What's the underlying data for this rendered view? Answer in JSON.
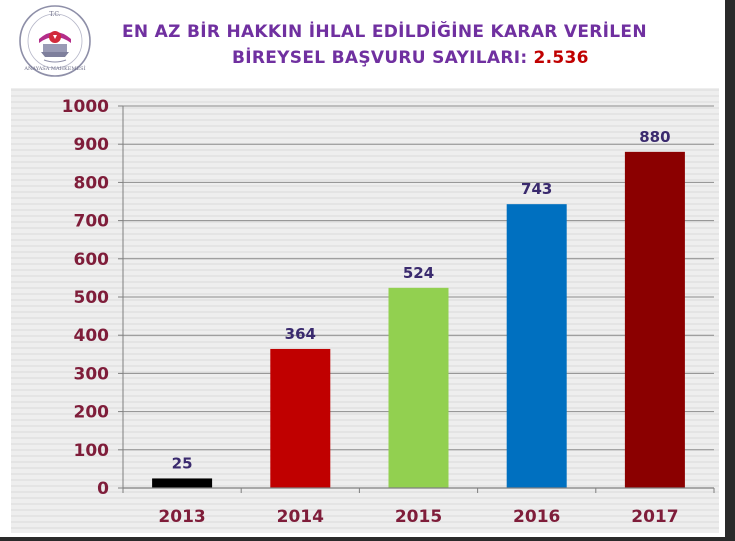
{
  "header": {
    "title_line1": "EN AZ BİR HAKKIN İHLAL EDİLDİĞİNE KARAR VERİLEN",
    "title_line2": "BİREYSEL BAŞVURU SAYILARI:",
    "total_label": "2.536",
    "logo_text_top": "T.C.",
    "logo_text_bottom": "ANAYASA MAHKEMESİ"
  },
  "colors": {
    "title": "#7030a0",
    "total": "#c00000",
    "tick_label": "#7f1d3a",
    "data_label": "#3a2a6e",
    "background_stripes": "#d9d9d9"
  },
  "chart_data": {
    "type": "bar",
    "categories": [
      "2013",
      "2014",
      "2015",
      "2016",
      "2017"
    ],
    "values": [
      25,
      364,
      524,
      743,
      880
    ],
    "bar_colors": [
      "#000000",
      "#c00000",
      "#92d050",
      "#0070c0",
      "#8b0000"
    ],
    "data_labels": [
      "25",
      "364",
      "524",
      "743",
      "880"
    ],
    "title": "EN AZ BİR HAKKIN İHLAL EDİLDİĞİNE KARAR VERİLEN BİREYSEL BAŞVURU SAYILARI: 2.536",
    "xlabel": "",
    "ylabel": "",
    "ylim": [
      0,
      1000
    ],
    "yticks": [
      0,
      100,
      200,
      300,
      400,
      500,
      600,
      700,
      800,
      900,
      1000
    ],
    "grid": true,
    "legend": "none"
  }
}
